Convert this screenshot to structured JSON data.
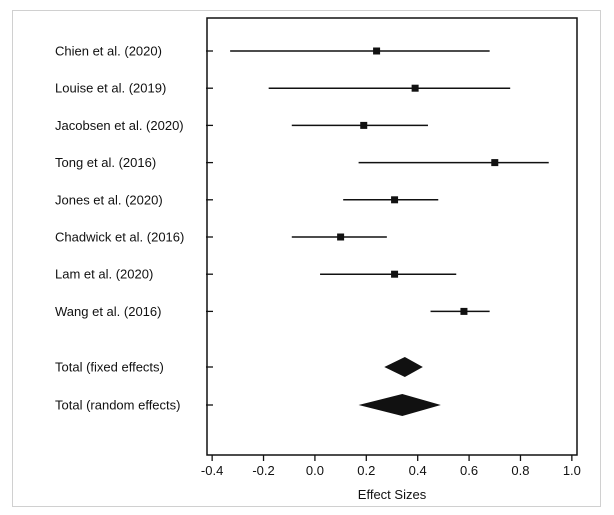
{
  "chart_data": {
    "type": "forest",
    "title": "",
    "xlabel": "Effect Sizes",
    "ylabel": "",
    "xlim": [
      -0.42,
      1.02
    ],
    "xticks": [
      "-0.4",
      "-0.2",
      "0.0",
      "0.2",
      "0.4",
      "0.6",
      "0.8",
      "1.0"
    ],
    "grid": false,
    "studies": [
      {
        "label": "Chien et al. (2020)",
        "estimate": 0.24,
        "lower": -0.33,
        "upper": 0.68
      },
      {
        "label": "Louise et al. (2019)",
        "estimate": 0.39,
        "lower": -0.18,
        "upper": 0.76
      },
      {
        "label": "Jacobsen et al. (2020)",
        "estimate": 0.19,
        "lower": -0.09,
        "upper": 0.44
      },
      {
        "label": "Tong et al. (2016)",
        "estimate": 0.7,
        "lower": 0.17,
        "upper": 0.91
      },
      {
        "label": "Jones et al. (2020)",
        "estimate": 0.31,
        "lower": 0.11,
        "upper": 0.48
      },
      {
        "label": "Chadwick et al. (2016)",
        "estimate": 0.1,
        "lower": -0.09,
        "upper": 0.28
      },
      {
        "label": "Lam et al. (2020)",
        "estimate": 0.31,
        "lower": 0.02,
        "upper": 0.55
      },
      {
        "label": "Wang et al. (2016)",
        "estimate": 0.58,
        "lower": 0.45,
        "upper": 0.68
      }
    ],
    "totals": [
      {
        "label": "Total (fixed effects)",
        "estimate": 0.35,
        "lower": 0.27,
        "upper": 0.42
      },
      {
        "label": "Total (random effects)",
        "estimate": 0.34,
        "lower": 0.17,
        "upper": 0.49
      }
    ]
  }
}
